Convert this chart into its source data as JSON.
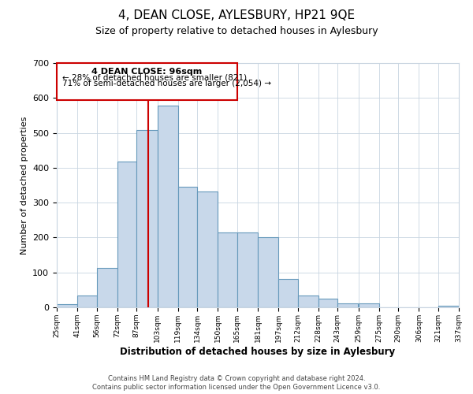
{
  "title": "4, DEAN CLOSE, AYLESBURY, HP21 9QE",
  "subtitle": "Size of property relative to detached houses in Aylesbury",
  "xlabel": "Distribution of detached houses by size in Aylesbury",
  "ylabel": "Number of detached properties",
  "bar_color": "#c8d8ea",
  "bar_edge_color": "#6699bb",
  "background_color": "#ffffff",
  "grid_color": "#c8d4e0",
  "annotation_box_color": "#cc0000",
  "vline_color": "#cc0000",
  "vline_x": 96,
  "annotation_title": "4 DEAN CLOSE: 96sqm",
  "annotation_line1": "← 28% of detached houses are smaller (821)",
  "annotation_line2": "71% of semi-detached houses are larger (2,054) →",
  "bins": [
    25,
    41,
    56,
    72,
    87,
    103,
    119,
    134,
    150,
    165,
    181,
    197,
    212,
    228,
    243,
    259,
    275,
    290,
    306,
    321,
    337
  ],
  "bin_labels": [
    "25sqm",
    "41sqm",
    "56sqm",
    "72sqm",
    "87sqm",
    "103sqm",
    "119sqm",
    "134sqm",
    "150sqm",
    "165sqm",
    "181sqm",
    "197sqm",
    "212sqm",
    "228sqm",
    "243sqm",
    "259sqm",
    "275sqm",
    "290sqm",
    "306sqm",
    "321sqm",
    "337sqm"
  ],
  "bar_heights": [
    8,
    33,
    113,
    418,
    507,
    578,
    345,
    332,
    215,
    215,
    201,
    82,
    34,
    25,
    11,
    12,
    0,
    0,
    0,
    5
  ],
  "ylim": [
    0,
    700
  ],
  "yticks": [
    0,
    100,
    200,
    300,
    400,
    500,
    600,
    700
  ],
  "footer1": "Contains HM Land Registry data © Crown copyright and database right 2024.",
  "footer2": "Contains public sector information licensed under the Open Government Licence v3.0."
}
